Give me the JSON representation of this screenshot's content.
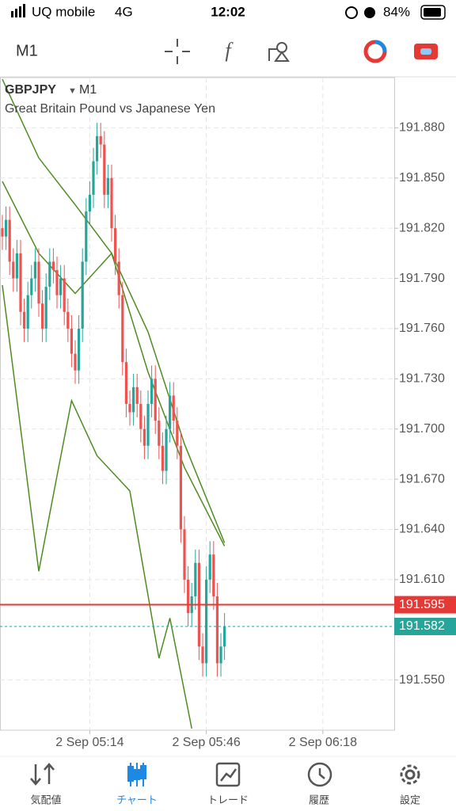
{
  "status_bar": {
    "carrier": "UQ mobile",
    "network": "4G",
    "time": "12:02",
    "battery": "84%"
  },
  "toolbar": {
    "timeframe": "M1"
  },
  "chart_data": {
    "type": "candlestick",
    "symbol": "GBPJPY",
    "timeframe": "M1",
    "description": "Great Britain Pound vs Japanese Yen",
    "open": [
      191.82,
      191.815,
      191.825,
      191.8,
      191.79,
      191.805,
      191.77,
      191.76,
      191.78,
      191.79,
      191.8,
      191.775,
      191.76,
      191.785,
      191.8,
      191.795,
      191.78,
      191.79,
      191.77,
      191.76,
      191.745,
      191.735,
      191.76,
      191.8,
      191.83,
      191.84,
      191.86,
      191.875,
      191.87,
      191.84,
      191.85,
      191.82,
      191.8,
      191.78,
      191.74,
      191.715,
      191.71,
      191.725,
      191.715,
      191.7,
      191.69,
      191.715,
      191.73,
      191.705,
      191.69,
      191.675,
      191.7,
      191.72,
      191.705,
      191.69,
      191.64,
      191.61,
      191.59,
      191.6,
      191.62,
      191.57,
      191.56,
      191.61,
      191.625,
      191.6,
      191.56,
      191.57
    ],
    "high": [
      191.828,
      191.833,
      191.833,
      191.808,
      191.813,
      191.813,
      191.778,
      191.788,
      191.798,
      191.808,
      191.808,
      191.783,
      191.793,
      191.808,
      191.808,
      191.803,
      191.798,
      191.798,
      191.778,
      191.768,
      191.753,
      191.768,
      191.808,
      191.838,
      191.848,
      191.868,
      191.883,
      191.883,
      191.878,
      191.858,
      191.858,
      191.828,
      191.808,
      191.788,
      191.748,
      191.723,
      191.733,
      191.733,
      191.723,
      191.708,
      191.723,
      191.738,
      191.738,
      191.713,
      191.698,
      191.708,
      191.728,
      191.728,
      191.713,
      191.698,
      191.648,
      191.618,
      191.608,
      191.628,
      191.628,
      191.578,
      191.618,
      191.633,
      191.633,
      191.608,
      191.578,
      191.59
    ],
    "low": [
      191.807,
      191.807,
      191.792,
      191.782,
      191.782,
      191.762,
      191.752,
      191.752,
      191.772,
      191.782,
      191.767,
      191.752,
      191.752,
      191.777,
      191.787,
      191.772,
      191.772,
      191.762,
      191.752,
      191.737,
      191.727,
      191.727,
      191.752,
      191.792,
      191.822,
      191.832,
      191.852,
      191.862,
      191.832,
      191.832,
      191.812,
      191.792,
      191.772,
      191.732,
      191.707,
      191.702,
      191.702,
      191.707,
      191.692,
      191.682,
      191.682,
      191.707,
      191.697,
      191.682,
      191.667,
      191.667,
      191.692,
      191.697,
      191.682,
      191.632,
      191.602,
      191.582,
      191.582,
      191.592,
      191.562,
      191.552,
      191.552,
      191.602,
      191.592,
      191.552,
      191.552,
      191.562
    ],
    "close": [
      191.815,
      191.825,
      191.8,
      191.79,
      191.805,
      191.77,
      191.76,
      191.78,
      191.79,
      191.8,
      191.775,
      191.76,
      191.785,
      191.8,
      191.795,
      191.78,
      191.79,
      191.77,
      191.76,
      191.745,
      191.735,
      191.76,
      191.8,
      191.83,
      191.84,
      191.86,
      191.875,
      191.87,
      191.84,
      191.85,
      191.82,
      191.8,
      191.78,
      191.74,
      191.715,
      191.71,
      191.725,
      191.715,
      191.7,
      191.69,
      191.715,
      191.73,
      191.705,
      191.69,
      191.675,
      191.7,
      191.72,
      191.705,
      191.69,
      191.64,
      191.61,
      191.59,
      191.6,
      191.62,
      191.57,
      191.56,
      191.61,
      191.625,
      191.6,
      191.56,
      191.57,
      191.582
    ],
    "up_color": "#26a69a",
    "down_color": "#ef5350",
    "xlim": [
      -0.65,
      107.6
    ],
    "xticks": [
      {
        "value": 24,
        "label": "2 Sep 05:14"
      },
      {
        "value": 56,
        "label": "2 Sep 05:46"
      },
      {
        "value": 88,
        "label": "2 Sep 06:18"
      }
    ],
    "ylim": [
      191.52,
      191.91
    ],
    "yticks": [
      {
        "value": 191.55,
        "label": "191.550"
      },
      {
        "value": 191.61,
        "label": "191.610"
      },
      {
        "value": 191.64,
        "label": "191.640"
      },
      {
        "value": 191.67,
        "label": "191.670"
      },
      {
        "value": 191.7,
        "label": "191.700"
      },
      {
        "value": 191.73,
        "label": "191.730"
      },
      {
        "value": 191.76,
        "label": "191.760"
      },
      {
        "value": 191.79,
        "label": "191.790"
      },
      {
        "value": 191.82,
        "label": "191.820"
      },
      {
        "value": 191.85,
        "label": "191.850"
      },
      {
        "value": 191.88,
        "label": "191.880"
      }
    ],
    "grid": true,
    "bands": [
      {
        "color": "#4d8c1e",
        "x": [
          0,
          10,
          20,
          30,
          40,
          50,
          61
        ],
        "values": [
          191.909,
          191.862,
          191.834,
          191.805,
          191.758,
          191.691,
          191.632
        ]
      },
      {
        "color": "#4d8c1e",
        "x": [
          0,
          10,
          20,
          30,
          40,
          50,
          61
        ],
        "values": [
          191.848,
          191.805,
          191.781,
          191.805,
          191.734,
          191.677,
          191.63
        ]
      },
      {
        "color": "#4d8c1e",
        "x": [
          0,
          10,
          15,
          19,
          26,
          35,
          43,
          46,
          52
        ],
        "values": [
          191.786,
          191.615,
          191.672,
          191.717,
          191.684,
          191.663,
          191.563,
          191.587,
          191.521
        ]
      }
    ],
    "ask": 191.595,
    "ask_color": "#e53935",
    "bid": 191.582,
    "bid_color": "#26a69a"
  },
  "tab_bar": {
    "tabs": [
      "気配値",
      "チャート",
      "トレード",
      "履歴",
      "設定"
    ],
    "active": 1
  }
}
